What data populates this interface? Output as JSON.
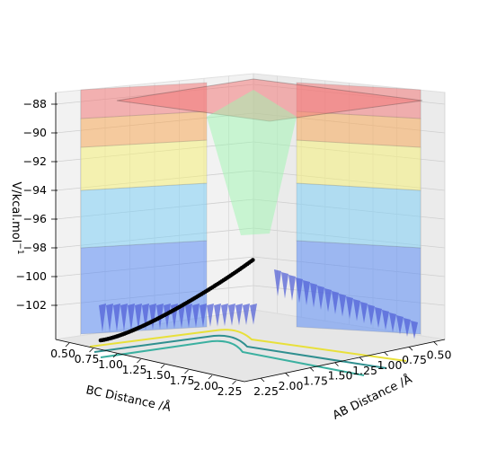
{
  "chart_data": {
    "type": "surface3d",
    "zlabel": "V/kcal.mol",
    "zlabel_sup": "−1",
    "xlabel": "BC Distance /Å",
    "ylabel": "AB Distance /Å",
    "z_ticks": [
      -88,
      -90,
      -92,
      -94,
      -96,
      -98,
      -100,
      -102
    ],
    "z_tick_labels": [
      "−88",
      "−90",
      "−92",
      "−94",
      "−96",
      "−98",
      "−100",
      "−102"
    ],
    "bc_ticks": [
      "0.50",
      "0.75",
      "1.00",
      "1.25",
      "1.50",
      "1.75",
      "2.00",
      "2.25"
    ],
    "ab_ticks": [
      "0.50",
      "0.75",
      "1.00",
      "1.25",
      "1.50",
      "1.75",
      "2.00",
      "2.25"
    ],
    "zlim": [
      -104,
      -87
    ],
    "color_bands": [
      {
        "from": -104,
        "to": -98,
        "color": "#5b8cf5"
      },
      {
        "from": -98,
        "to": -94,
        "color": "#7fd0f5"
      },
      {
        "from": -94,
        "to": -91,
        "color": "#f5f07a"
      },
      {
        "from": -91,
        "to": -89,
        "color": "#f7a95a"
      },
      {
        "from": -89,
        "to": -87,
        "color": "#f27a7a"
      }
    ],
    "trajectory": {
      "name": "reaction path",
      "color": "#000000"
    },
    "contours": [
      "#e8e03a",
      "#2f8f8f",
      "#3bb0a0"
    ],
    "grid": true
  }
}
